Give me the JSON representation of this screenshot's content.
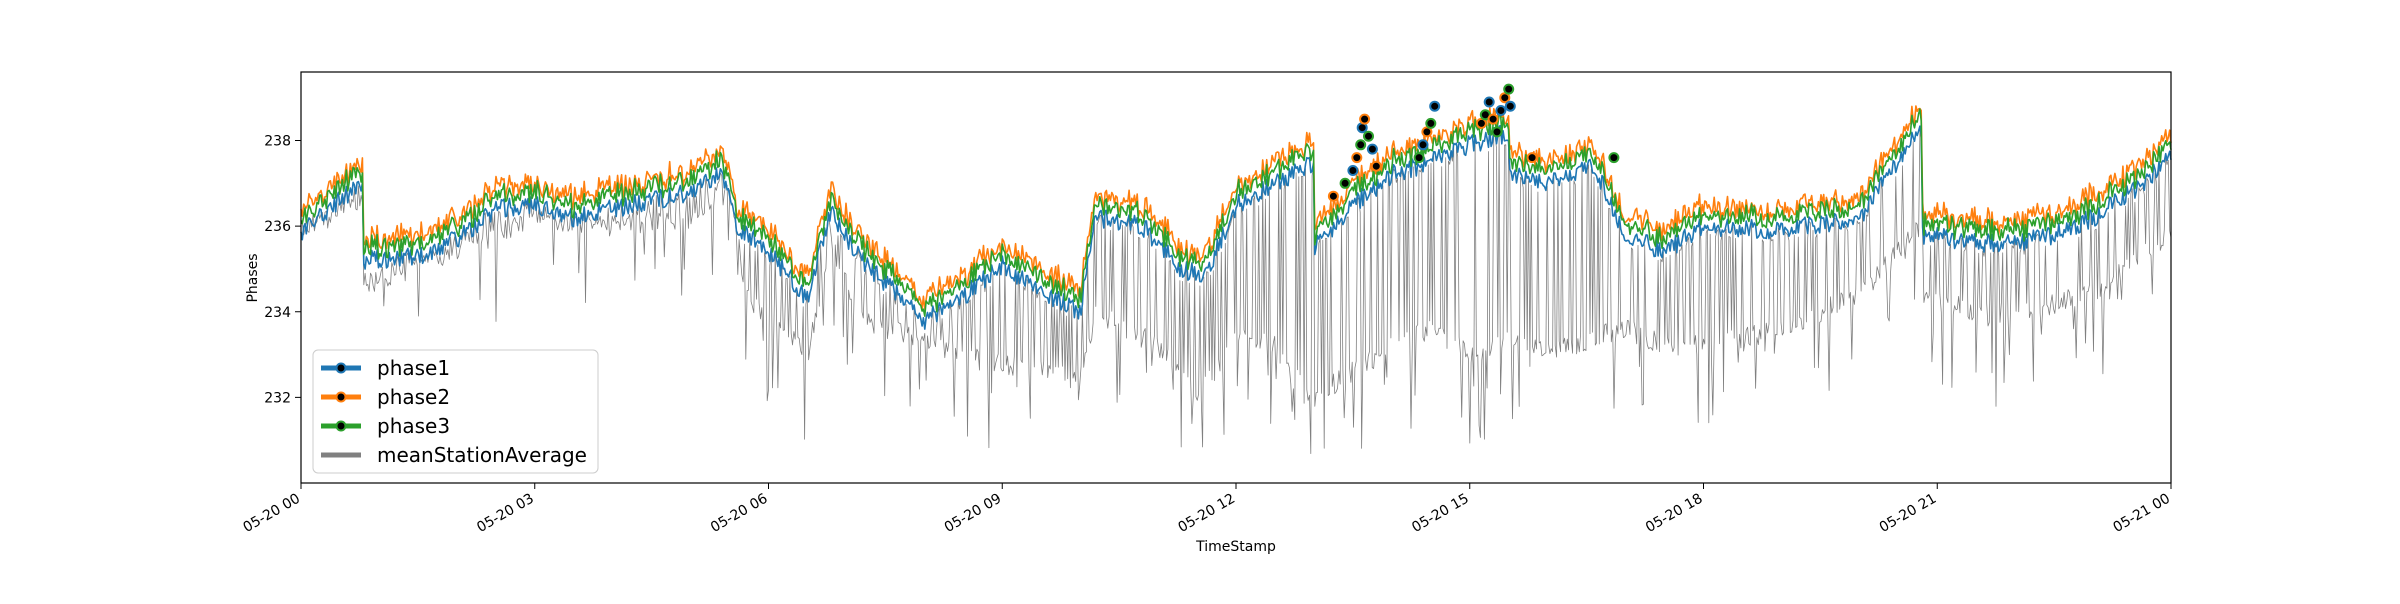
{
  "chart_data": {
    "type": "line",
    "title": "",
    "xlabel": "TimeStamp",
    "ylabel": "Phases",
    "x_ticks": [
      "05-20 00",
      "05-20 03",
      "05-20 06",
      "05-20 09",
      "05-20 12",
      "05-20 15",
      "05-20 18",
      "05-20 21",
      "05-21 00"
    ],
    "y_ticks": [
      232,
      234,
      236,
      238
    ],
    "xlim_hours": [
      0,
      24
    ],
    "ylim": [
      230.0,
      239.6
    ],
    "grid": false,
    "legend_position": "lower-left",
    "series": [
      {
        "name": "phase1",
        "color": "#1f77b4",
        "marker_outlier": true
      },
      {
        "name": "phase2",
        "color": "#ff7f0e",
        "marker_outlier": true
      },
      {
        "name": "phase3",
        "color": "#2ca02c",
        "marker_outlier": true
      },
      {
        "name": "meanStationAverage",
        "color": "#808080",
        "marker_outlier": false
      }
    ],
    "phase1_profile": [
      [
        0.0,
        235.8
      ],
      [
        0.4,
        236.5
      ],
      [
        0.8,
        237.0
      ],
      [
        0.8,
        235.2
      ],
      [
        1.5,
        235.3
      ],
      [
        2.0,
        235.7
      ],
      [
        2.5,
        236.4
      ],
      [
        3.0,
        236.5
      ],
      [
        3.5,
        236.2
      ],
      [
        4.0,
        236.4
      ],
      [
        4.5,
        236.6
      ],
      [
        5.0,
        236.8
      ],
      [
        5.4,
        237.3
      ],
      [
        5.6,
        236.0
      ],
      [
        6.0,
        235.4
      ],
      [
        6.5,
        234.3
      ],
      [
        6.8,
        236.3
      ],
      [
        7.2,
        235.2
      ],
      [
        8.0,
        233.8
      ],
      [
        8.4,
        234.2
      ],
      [
        9.0,
        235.1
      ],
      [
        9.5,
        234.5
      ],
      [
        10.0,
        234.0
      ],
      [
        10.2,
        236.2
      ],
      [
        10.8,
        236.0
      ],
      [
        11.3,
        235.0
      ],
      [
        11.6,
        234.8
      ],
      [
        12.0,
        236.5
      ],
      [
        12.5,
        237.0
      ],
      [
        13.0,
        237.5
      ],
      [
        13.0,
        235.5
      ],
      [
        13.5,
        236.5
      ],
      [
        14.0,
        237.2
      ],
      [
        14.5,
        237.5
      ],
      [
        15.0,
        237.9
      ],
      [
        15.5,
        238.2
      ],
      [
        15.5,
        237.2
      ],
      [
        16.0,
        237.0
      ],
      [
        16.6,
        237.4
      ],
      [
        17.0,
        235.8
      ],
      [
        17.5,
        235.4
      ],
      [
        18.0,
        236.0
      ],
      [
        19.0,
        235.9
      ],
      [
        20.0,
        236.2
      ],
      [
        20.5,
        237.5
      ],
      [
        20.8,
        238.3
      ],
      [
        20.8,
        235.8
      ],
      [
        21.5,
        235.6
      ],
      [
        22.0,
        235.6
      ],
      [
        22.5,
        235.8
      ],
      [
        23.0,
        236.2
      ],
      [
        23.5,
        236.8
      ],
      [
        24.0,
        237.6
      ]
    ],
    "mean_profile": [
      [
        0.0,
        235.9
      ],
      [
        0.8,
        236.6
      ],
      [
        0.8,
        234.6
      ],
      [
        2.0,
        235.4
      ],
      [
        3.0,
        236.2
      ],
      [
        4.0,
        236.0
      ],
      [
        5.0,
        236.2
      ],
      [
        5.5,
        236.8
      ],
      [
        5.7,
        234.4
      ],
      [
        6.5,
        233.0
      ],
      [
        6.8,
        235.6
      ],
      [
        7.2,
        233.8
      ],
      [
        8.0,
        233.3
      ],
      [
        9.0,
        232.8
      ],
      [
        10.0,
        232.4
      ],
      [
        10.2,
        234.0
      ],
      [
        11.0,
        233.2
      ],
      [
        11.5,
        232.0
      ],
      [
        12.0,
        233.4
      ],
      [
        12.5,
        233.2
      ],
      [
        13.0,
        232.0
      ],
      [
        13.5,
        232.6
      ],
      [
        14.0,
        233.2
      ],
      [
        14.5,
        233.6
      ],
      [
        15.0,
        233.0
      ],
      [
        15.5,
        233.4
      ],
      [
        16.0,
        233.0
      ],
      [
        16.6,
        233.4
      ],
      [
        17.0,
        233.6
      ],
      [
        17.5,
        233.2
      ],
      [
        18.0,
        233.2
      ],
      [
        19.0,
        233.6
      ],
      [
        20.0,
        234.4
      ],
      [
        20.8,
        236.0
      ],
      [
        20.8,
        234.4
      ],
      [
        21.5,
        234.0
      ],
      [
        22.0,
        234.0
      ],
      [
        23.0,
        234.4
      ],
      [
        24.0,
        235.8
      ]
    ],
    "phase2_offset": 0.5,
    "phase3_offset": 0.3,
    "outlier_points": [
      [
        13.25,
        236.7
      ],
      [
        13.4,
        237.0
      ],
      [
        13.5,
        237.3
      ],
      [
        13.55,
        237.6
      ],
      [
        13.6,
        237.9
      ],
      [
        13.62,
        238.3
      ],
      [
        13.65,
        238.5
      ],
      [
        13.7,
        238.1
      ],
      [
        13.75,
        237.8
      ],
      [
        13.8,
        237.4
      ],
      [
        14.35,
        237.6
      ],
      [
        14.4,
        237.9
      ],
      [
        14.45,
        238.2
      ],
      [
        14.5,
        238.4
      ],
      [
        14.55,
        238.8
      ],
      [
        15.15,
        238.4
      ],
      [
        15.2,
        238.6
      ],
      [
        15.25,
        238.9
      ],
      [
        15.3,
        238.5
      ],
      [
        15.35,
        238.2
      ],
      [
        15.4,
        238.7
      ],
      [
        15.45,
        239.0
      ],
      [
        15.5,
        239.2
      ],
      [
        15.52,
        238.8
      ],
      [
        15.8,
        237.6
      ],
      [
        16.85,
        237.6
      ]
    ]
  }
}
